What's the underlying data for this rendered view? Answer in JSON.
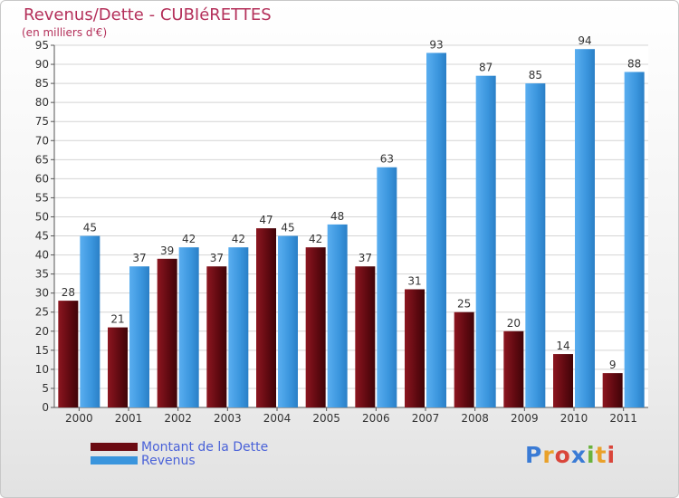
{
  "title": "Revenus/Dette - CUBIéRETTES",
  "subtitle": "(en milliers d'€)",
  "logo": "Proxiti",
  "colors": {
    "dette": "#6b0a12",
    "revenus": "#3a95dd",
    "title": "#b4305a",
    "legend_text": "#4a62d8"
  },
  "chart_data": {
    "type": "bar",
    "title": "Revenus/Dette - CUBIéRETTES",
    "ylabel": "(en milliers d'€)",
    "xlabel": "",
    "ylim": [
      0,
      95
    ],
    "yticks": [
      0,
      5,
      10,
      15,
      20,
      25,
      30,
      35,
      40,
      45,
      50,
      55,
      60,
      65,
      70,
      75,
      80,
      85,
      90,
      95
    ],
    "grid": true,
    "categories": [
      "2000",
      "2001",
      "2002",
      "2003",
      "2004",
      "2005",
      "2006",
      "2007",
      "2008",
      "2009",
      "2010",
      "2011"
    ],
    "series": [
      {
        "name": "Montant de la Dette",
        "values": [
          28,
          21,
          39,
          37,
          47,
          42,
          37,
          31,
          25,
          20,
          14,
          9
        ]
      },
      {
        "name": "Revenus",
        "values": [
          45,
          37,
          42,
          42,
          45,
          48,
          63,
          93,
          87,
          85,
          94,
          88
        ]
      }
    ],
    "legend": "bottom-left"
  }
}
